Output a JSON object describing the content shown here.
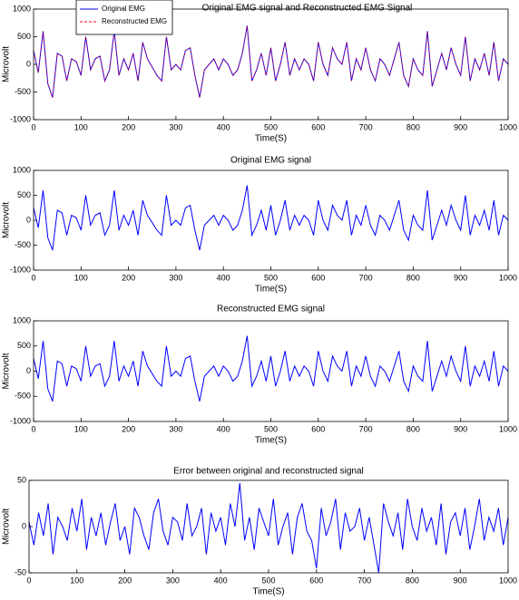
{
  "chart_data": [
    {
      "type": "line",
      "title": "Original EMG signal and Reconstructed EMG Signal",
      "xlabel": "Time(S)",
      "ylabel": "Microvolt",
      "legend": "upper left",
      "x": [
        0,
        10,
        20,
        30,
        40,
        50,
        60,
        70,
        80,
        90,
        100,
        110,
        120,
        130,
        140,
        150,
        160,
        170,
        180,
        190,
        200,
        210,
        220,
        230,
        240,
        250,
        260,
        270,
        280,
        290,
        300,
        310,
        320,
        330,
        340,
        350,
        360,
        370,
        380,
        390,
        400,
        410,
        420,
        430,
        440,
        450,
        460,
        470,
        480,
        490,
        500,
        510,
        520,
        530,
        540,
        550,
        560,
        570,
        580,
        590,
        600,
        610,
        620,
        630,
        640,
        650,
        660,
        670,
        680,
        690,
        700,
        710,
        720,
        730,
        740,
        750,
        760,
        770,
        780,
        790,
        800,
        810,
        820,
        830,
        840,
        850,
        860,
        870,
        880,
        890,
        900,
        910,
        920,
        930,
        940,
        950,
        960,
        970,
        980,
        990,
        1000
      ],
      "series": [
        {
          "name": "Original EMG",
          "color": "#0000ff",
          "values": [
            250,
            -150,
            600,
            -350,
            -600,
            200,
            150,
            -300,
            100,
            50,
            -200,
            500,
            -100,
            100,
            150,
            -300,
            -100,
            600,
            -200,
            100,
            -100,
            200,
            -300,
            400,
            100,
            -50,
            -200,
            -300,
            500,
            -100,
            0,
            -100,
            250,
            300,
            -200,
            -600,
            -100,
            0,
            100,
            -100,
            100,
            0,
            -200,
            -100,
            200,
            700,
            -300,
            -100,
            200,
            -200,
            300,
            -300,
            0,
            400,
            -200,
            100,
            -100,
            100,
            0,
            -300,
            400,
            0,
            -200,
            300,
            100,
            0,
            400,
            -300,
            100,
            -100,
            300,
            -100,
            -300,
            100,
            0,
            -200,
            100,
            400,
            -200,
            -400,
            100,
            -100,
            -200,
            600,
            -400,
            -100,
            200,
            -100,
            300,
            0,
            -200,
            500,
            -300,
            100,
            -100,
            200,
            -200,
            400,
            -300,
            100,
            0
          ]
        },
        {
          "name": "Reconstructed EMG",
          "color": "#ff0000",
          "dashed": true,
          "values": [
            250,
            -150,
            600,
            -350,
            -600,
            200,
            150,
            -300,
            100,
            50,
            -200,
            500,
            -100,
            100,
            150,
            -300,
            -100,
            600,
            -200,
            100,
            -100,
            200,
            -300,
            400,
            100,
            -50,
            -200,
            -300,
            500,
            -100,
            0,
            -100,
            250,
            300,
            -200,
            -600,
            -100,
            0,
            100,
            -100,
            100,
            0,
            -200,
            -100,
            200,
            700,
            -300,
            -100,
            200,
            -200,
            300,
            -300,
            0,
            400,
            -200,
            100,
            -100,
            100,
            0,
            -300,
            400,
            0,
            -200,
            300,
            100,
            0,
            400,
            -300,
            100,
            -100,
            300,
            -100,
            -300,
            100,
            0,
            -200,
            100,
            400,
            -200,
            -400,
            100,
            -100,
            -200,
            600,
            -400,
            -100,
            200,
            -100,
            300,
            0,
            -200,
            500,
            -300,
            100,
            -100,
            200,
            -200,
            400,
            -300,
            100,
            0
          ]
        }
      ],
      "xlim": [
        0,
        1000
      ],
      "ylim": [
        -1000,
        1000
      ],
      "xticks": [
        0,
        100,
        200,
        300,
        400,
        500,
        600,
        700,
        800,
        900,
        1000
      ],
      "yticks": [
        -1000,
        -500,
        0,
        500,
        1000
      ]
    },
    {
      "type": "line",
      "title": "Original EMG signal",
      "xlabel": "Time(S)",
      "ylabel": "Microvolt",
      "x": [
        0,
        10,
        20,
        30,
        40,
        50,
        60,
        70,
        80,
        90,
        100,
        110,
        120,
        130,
        140,
        150,
        160,
        170,
        180,
        190,
        200,
        210,
        220,
        230,
        240,
        250,
        260,
        270,
        280,
        290,
        300,
        310,
        320,
        330,
        340,
        350,
        360,
        370,
        380,
        390,
        400,
        410,
        420,
        430,
        440,
        450,
        460,
        470,
        480,
        490,
        500,
        510,
        520,
        530,
        540,
        550,
        560,
        570,
        580,
        590,
        600,
        610,
        620,
        630,
        640,
        650,
        660,
        670,
        680,
        690,
        700,
        710,
        720,
        730,
        740,
        750,
        760,
        770,
        780,
        790,
        800,
        810,
        820,
        830,
        840,
        850,
        860,
        870,
        880,
        890,
        900,
        910,
        920,
        930,
        940,
        950,
        960,
        970,
        980,
        990,
        1000
      ],
      "series": [
        {
          "color": "#0000ff",
          "values": [
            250,
            -150,
            600,
            -350,
            -600,
            200,
            150,
            -300,
            100,
            50,
            -200,
            500,
            -100,
            100,
            150,
            -300,
            -100,
            600,
            -200,
            100,
            -100,
            200,
            -300,
            400,
            100,
            -50,
            -200,
            -300,
            500,
            -100,
            0,
            -100,
            250,
            300,
            -200,
            -600,
            -100,
            0,
            100,
            -100,
            100,
            0,
            -200,
            -100,
            200,
            700,
            -300,
            -100,
            200,
            -200,
            300,
            -300,
            0,
            400,
            -200,
            100,
            -100,
            100,
            0,
            -300,
            400,
            0,
            -200,
            300,
            100,
            0,
            400,
            -300,
            100,
            -100,
            300,
            -100,
            -300,
            100,
            0,
            -200,
            100,
            400,
            -200,
            -400,
            100,
            -100,
            -200,
            600,
            -400,
            -100,
            200,
            -100,
            300,
            0,
            -200,
            500,
            -300,
            100,
            -100,
            200,
            -200,
            400,
            -300,
            100,
            0
          ]
        }
      ],
      "xlim": [
        0,
        1000
      ],
      "ylim": [
        -1000,
        1000
      ],
      "xticks": [
        0,
        100,
        200,
        300,
        400,
        500,
        600,
        700,
        800,
        900,
        1000
      ],
      "yticks": [
        -1000,
        -500,
        0,
        500,
        1000
      ]
    },
    {
      "type": "line",
      "title": "Reconstructed EMG signal",
      "xlabel": "Time(S)",
      "ylabel": "Microvolt",
      "x": [
        0,
        10,
        20,
        30,
        40,
        50,
        60,
        70,
        80,
        90,
        100,
        110,
        120,
        130,
        140,
        150,
        160,
        170,
        180,
        190,
        200,
        210,
        220,
        230,
        240,
        250,
        260,
        270,
        280,
        290,
        300,
        310,
        320,
        330,
        340,
        350,
        360,
        370,
        380,
        390,
        400,
        410,
        420,
        430,
        440,
        450,
        460,
        470,
        480,
        490,
        500,
        510,
        520,
        530,
        540,
        550,
        560,
        570,
        580,
        590,
        600,
        610,
        620,
        630,
        640,
        650,
        660,
        670,
        680,
        690,
        700,
        710,
        720,
        730,
        740,
        750,
        760,
        770,
        780,
        790,
        800,
        810,
        820,
        830,
        840,
        850,
        860,
        870,
        880,
        890,
        900,
        910,
        920,
        930,
        940,
        950,
        960,
        970,
        980,
        990,
        1000
      ],
      "series": [
        {
          "color": "#0000ff",
          "values": [
            250,
            -150,
            600,
            -350,
            -600,
            200,
            150,
            -300,
            100,
            50,
            -200,
            500,
            -100,
            100,
            150,
            -300,
            -100,
            600,
            -200,
            100,
            -100,
            200,
            -300,
            400,
            100,
            -50,
            -200,
            -300,
            500,
            -100,
            0,
            -100,
            250,
            300,
            -200,
            -600,
            -100,
            0,
            100,
            -100,
            100,
            0,
            -200,
            -100,
            200,
            700,
            -300,
            -100,
            200,
            -200,
            300,
            -300,
            0,
            400,
            -200,
            100,
            -100,
            100,
            0,
            -300,
            400,
            0,
            -200,
            300,
            100,
            0,
            400,
            -300,
            100,
            -100,
            300,
            -100,
            -300,
            100,
            0,
            -200,
            100,
            400,
            -200,
            -400,
            100,
            -100,
            -200,
            600,
            -400,
            -100,
            200,
            -100,
            300,
            0,
            -200,
            500,
            -300,
            100,
            -100,
            200,
            -200,
            400,
            -300,
            100,
            0
          ]
        }
      ],
      "xlim": [
        0,
        1000
      ],
      "ylim": [
        -1000,
        1000
      ],
      "xticks": [
        0,
        100,
        200,
        300,
        400,
        500,
        600,
        700,
        800,
        900,
        1000
      ],
      "yticks": [
        -1000,
        -500,
        0,
        500,
        1000
      ]
    },
    {
      "type": "line",
      "title": "Error between original and reconstructed signal",
      "xlabel": "Time(S)",
      "ylabel": "Microvolt",
      "x": [
        0,
        10,
        20,
        30,
        40,
        50,
        60,
        70,
        80,
        90,
        100,
        110,
        120,
        130,
        140,
        150,
        160,
        170,
        180,
        190,
        200,
        210,
        220,
        230,
        240,
        250,
        260,
        270,
        280,
        290,
        300,
        310,
        320,
        330,
        340,
        350,
        360,
        370,
        380,
        390,
        400,
        410,
        420,
        430,
        440,
        450,
        460,
        470,
        480,
        490,
        500,
        510,
        520,
        530,
        540,
        550,
        560,
        570,
        580,
        590,
        600,
        610,
        620,
        630,
        640,
        650,
        660,
        670,
        680,
        690,
        700,
        710,
        720,
        730,
        740,
        750,
        760,
        770,
        780,
        790,
        800,
        810,
        820,
        830,
        840,
        850,
        860,
        870,
        880,
        890,
        900,
        910,
        920,
        930,
        940,
        950,
        960,
        970,
        980,
        990,
        1000
      ],
      "series": [
        {
          "color": "#0000ff",
          "values": [
            5,
            -20,
            15,
            -10,
            25,
            -30,
            10,
            0,
            -15,
            20,
            -5,
            30,
            -25,
            10,
            -10,
            15,
            -20,
            5,
            25,
            -15,
            0,
            -30,
            20,
            10,
            -10,
            -25,
            15,
            30,
            -5,
            -20,
            10,
            5,
            -15,
            25,
            -10,
            0,
            20,
            -30,
            15,
            -5,
            10,
            -20,
            25,
            0,
            47,
            -15,
            10,
            -25,
            20,
            5,
            -10,
            30,
            -20,
            0,
            15,
            -30,
            10,
            25,
            -5,
            -15,
            -45,
            20,
            -10,
            5,
            30,
            -25,
            15,
            -5,
            0,
            20,
            -15,
            10,
            -20,
            -50,
            25,
            5,
            -10,
            15,
            -25,
            30,
            0,
            -15,
            20,
            -5,
            10,
            -20,
            25,
            -30,
            5,
            15,
            -10,
            20,
            -25,
            0,
            30,
            -15,
            10,
            -5,
            20,
            -20,
            10
          ]
        }
      ],
      "xlim": [
        0,
        1000
      ],
      "ylim": [
        -50,
        50
      ],
      "xticks": [
        0,
        100,
        200,
        300,
        400,
        500,
        600,
        700,
        800,
        900,
        1000
      ],
      "yticks": [
        -50,
        0,
        50
      ]
    }
  ]
}
